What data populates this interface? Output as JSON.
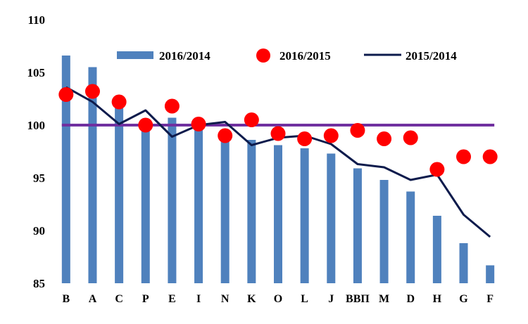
{
  "chart_data": {
    "type": "bar",
    "categories": [
      "B",
      "A",
      "C",
      "P",
      "E",
      "I",
      "N",
      "K",
      "O",
      "L",
      "J",
      "ВВП",
      "M",
      "D",
      "H",
      "G",
      "F"
    ],
    "ylim": [
      85,
      110
    ],
    "yticks": [
      85,
      90,
      95,
      100,
      105,
      110
    ],
    "xlabel": "",
    "ylabel": "",
    "title": "",
    "grid": false,
    "legend_position": "top",
    "series": [
      {
        "name": "2016/2014",
        "type": "bar",
        "color": "#4F81BD",
        "values": [
          106.6,
          105.5,
          101.8,
          100.0,
          100.7,
          100.0,
          99.0,
          98.6,
          98.1,
          97.8,
          97.3,
          95.9,
          94.8,
          93.7,
          91.4,
          88.8,
          86.7
        ]
      },
      {
        "name": "2016/2015",
        "type": "scatter",
        "color": "#FF0000",
        "values": [
          102.9,
          103.2,
          102.2,
          100.0,
          101.8,
          100.1,
          99.0,
          100.5,
          99.2,
          98.7,
          99.0,
          99.5,
          98.7,
          98.8,
          95.8,
          97.0,
          97.0
        ]
      },
      {
        "name": "2015/2014",
        "type": "line",
        "color": "#0D1B4C",
        "values": [
          103.6,
          102.2,
          100.1,
          101.4,
          98.9,
          100.0,
          100.3,
          98.1,
          98.8,
          99.0,
          98.2,
          96.3,
          96.0,
          94.8,
          95.3,
          91.5,
          89.4
        ]
      }
    ],
    "reference_line": {
      "value": 100,
      "color": "#7030A0"
    }
  }
}
